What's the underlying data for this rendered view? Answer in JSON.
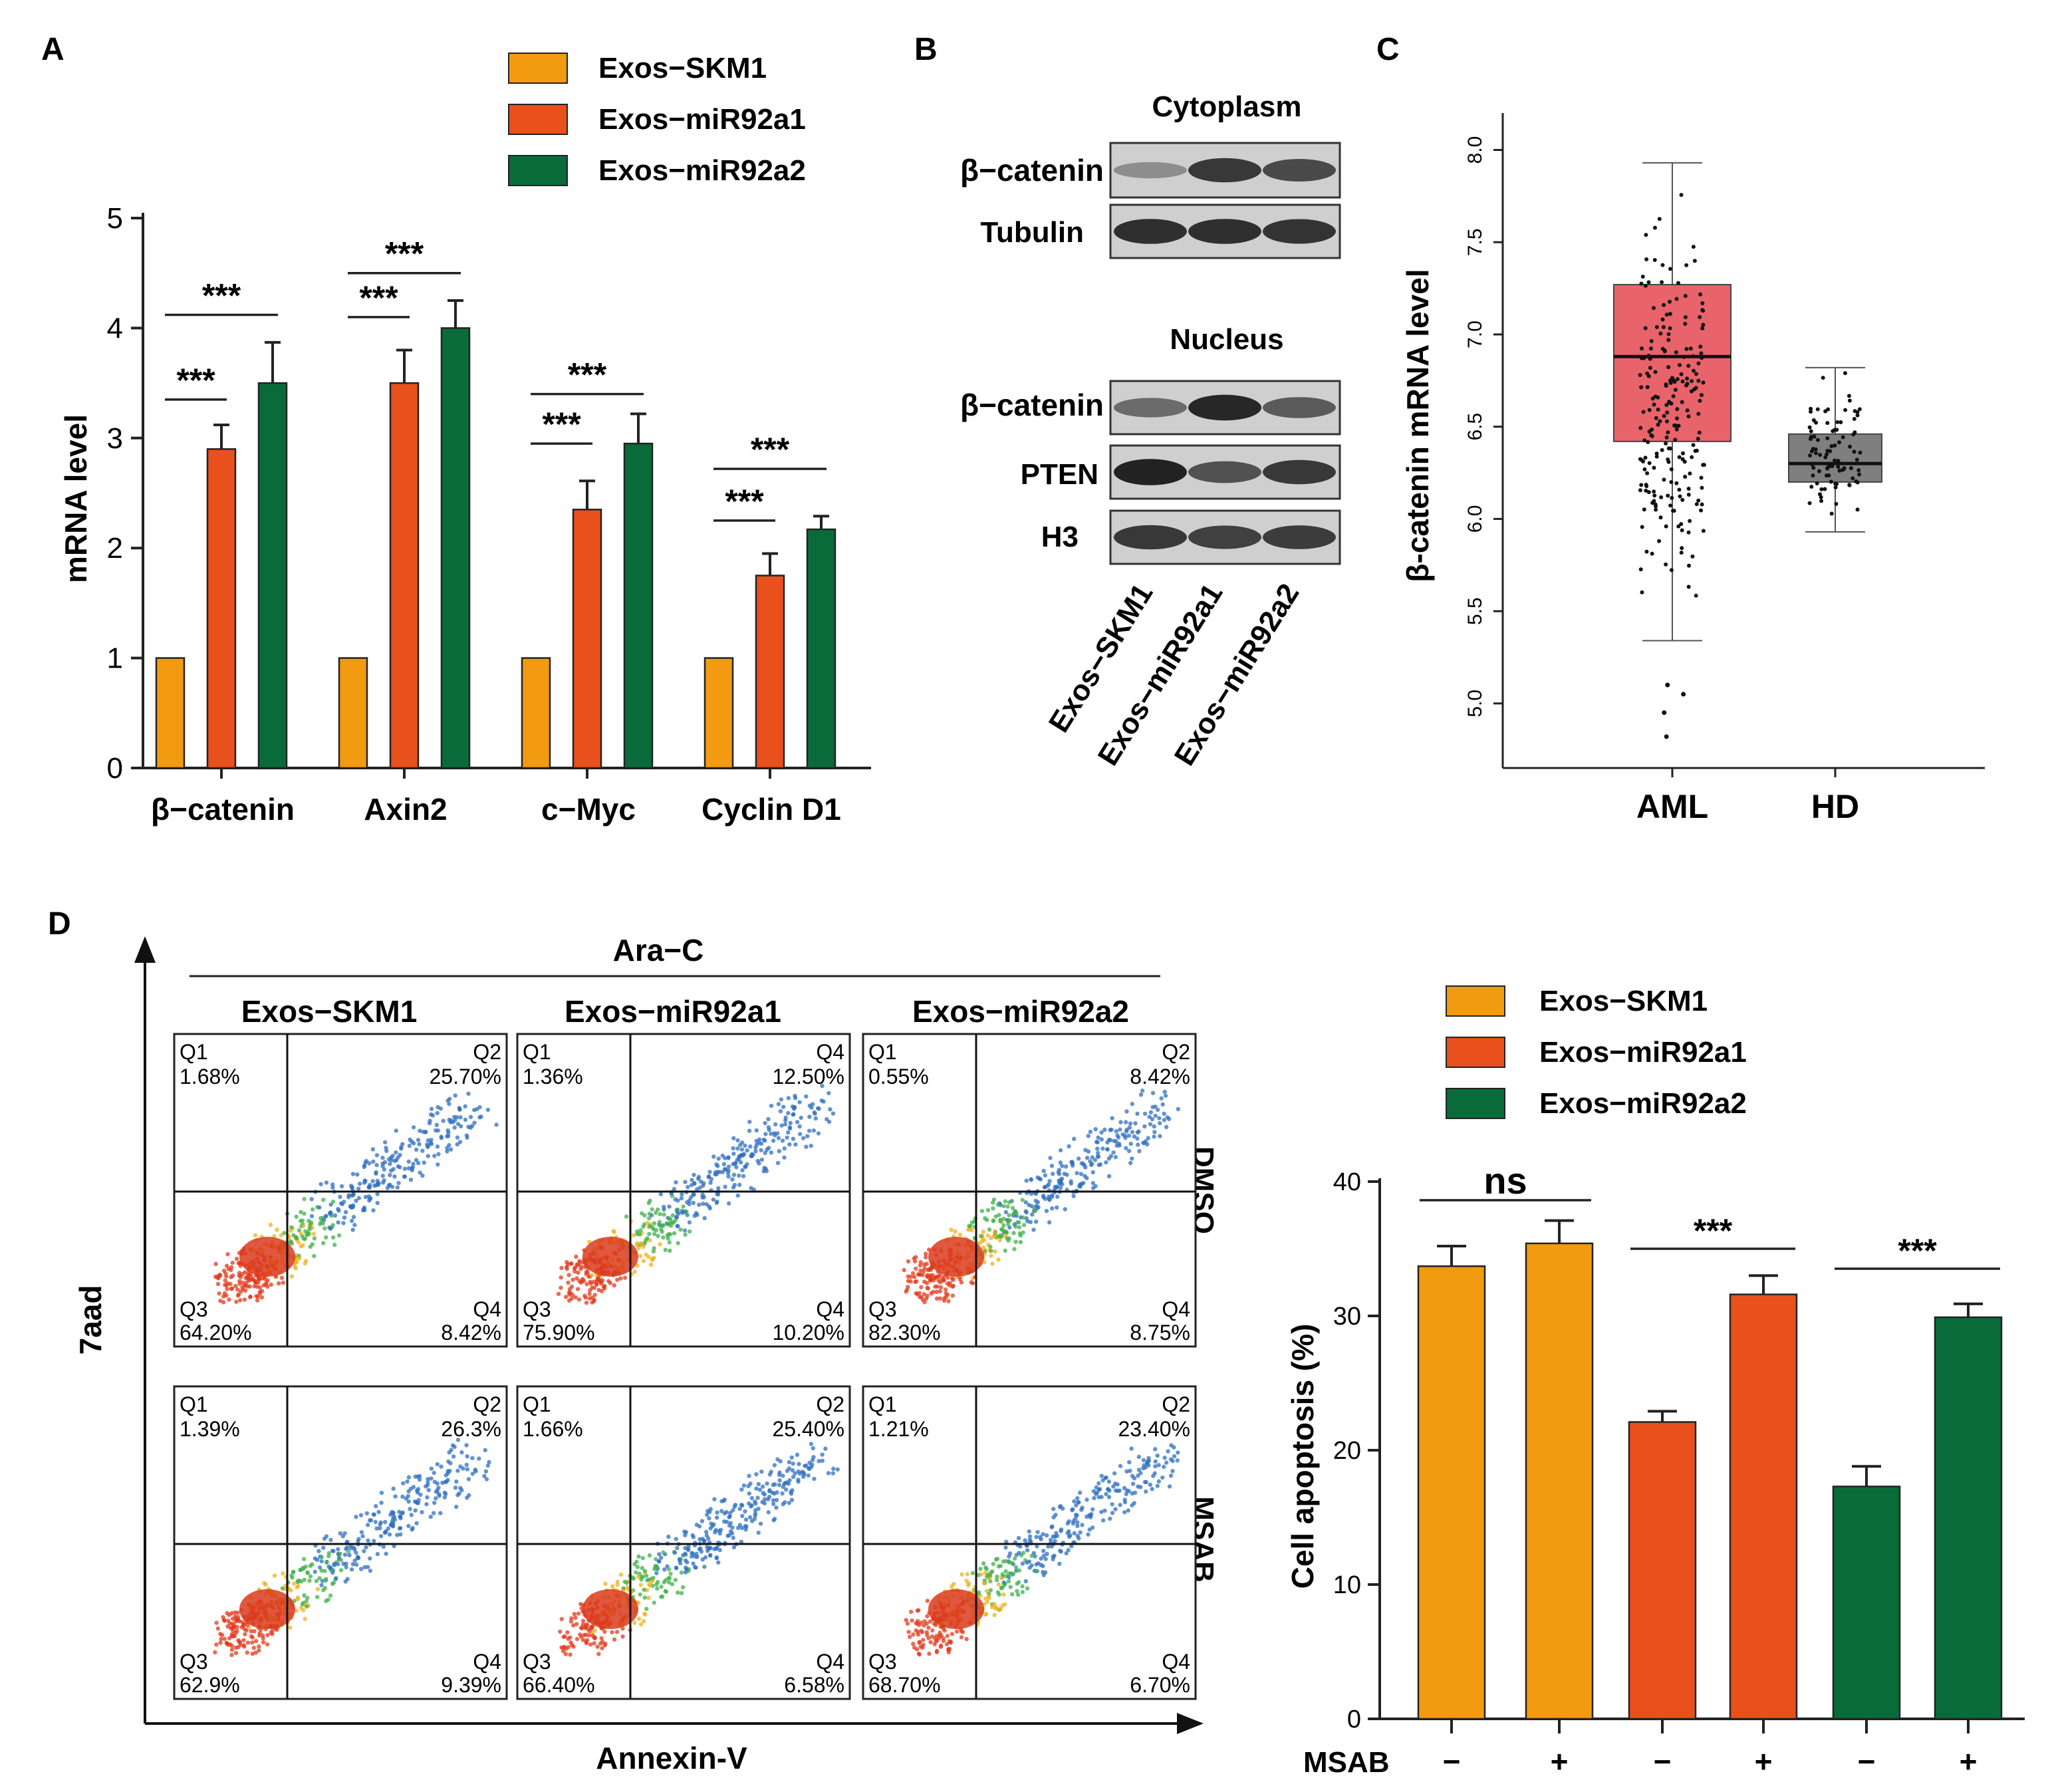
{
  "colors": {
    "skm1": "#F29A10",
    "mir92a1": "#E8501C",
    "mir92a2": "#0A6B3A",
    "aml_box": "#E9636A",
    "hd_box": "#7F7F7F",
    "axis": "#222222"
  },
  "panel_labels": {
    "a": "A",
    "b": "B",
    "c": "C",
    "d": "D"
  },
  "legend": {
    "items": [
      "Exos−SKM1",
      "Exos−miR92a1",
      "Exos−miR92a2"
    ]
  },
  "chart_data": [
    {
      "id": "A",
      "type": "bar",
      "title": "",
      "categories": [
        "β−catenin",
        "Axin2",
        "c−Myc",
        "Cyclin D1"
      ],
      "series": [
        {
          "name": "Exos−SKM1",
          "values": [
            1.0,
            1.0,
            1.0,
            1.0
          ],
          "errors": [
            0,
            0,
            0,
            0
          ]
        },
        {
          "name": "Exos−miR92a1",
          "values": [
            2.9,
            3.5,
            2.35,
            1.75
          ],
          "errors": [
            0.22,
            0.3,
            0.26,
            0.2
          ]
        },
        {
          "name": "Exos−miR92a2",
          "values": [
            3.5,
            4.0,
            2.95,
            2.17
          ],
          "errors": [
            0.37,
            0.25,
            0.27,
            0.12
          ]
        }
      ],
      "ylabel": "mRNA level",
      "xlabel": "",
      "ylim": [
        0,
        5
      ],
      "yticks": [
        "0",
        "1",
        "2",
        "3",
        "4",
        "5"
      ],
      "significance": [
        {
          "group": 0,
          "from": 0,
          "to": 1,
          "label": "***",
          "y": 3.35
        },
        {
          "group": 0,
          "from": 0,
          "to": 2,
          "label": "***",
          "y": 4.12
        },
        {
          "group": 1,
          "from": 0,
          "to": 1,
          "label": "***",
          "y": 4.1
        },
        {
          "group": 1,
          "from": 0,
          "to": 2,
          "label": "***",
          "y": 4.5
        },
        {
          "group": 2,
          "from": 0,
          "to": 1,
          "label": "***",
          "y": 2.95
        },
        {
          "group": 2,
          "from": 0,
          "to": 2,
          "label": "***",
          "y": 3.4
        },
        {
          "group": 3,
          "from": 0,
          "to": 1,
          "label": "***",
          "y": 2.25
        },
        {
          "group": 3,
          "from": 0,
          "to": 2,
          "label": "***",
          "y": 2.72
        }
      ]
    },
    {
      "id": "C",
      "type": "box",
      "categories": [
        "AML",
        "HD"
      ],
      "ylabel": "β-catenin mRNA level",
      "ylim": [
        4.65,
        8.2
      ],
      "yticks": [
        "5.0",
        "5.5",
        "6.0",
        "6.5",
        "7.0",
        "7.5",
        "8.0"
      ],
      "boxes": [
        {
          "name": "AML",
          "whisker_low": 5.34,
          "q1": 6.42,
          "median": 6.88,
          "q3": 7.27,
          "whisker_high": 7.93,
          "outliers": [
            5.1,
            5.05,
            4.95,
            4.82
          ]
        },
        {
          "name": "HD",
          "whisker_low": 5.93,
          "q1": 6.2,
          "median": 6.3,
          "q3": 6.46,
          "whisker_high": 6.82,
          "outliers": []
        }
      ]
    },
    {
      "id": "D",
      "type": "bar",
      "categories": [
        "Exos−SKM1 −",
        "Exos−SKM1 +",
        "Exos−miR92a1 −",
        "Exos−miR92a1 +",
        "Exos−miR92a2 −",
        "Exos−miR92a2 +"
      ],
      "values": [
        33.7,
        35.4,
        22.1,
        31.6,
        17.3,
        29.9
      ],
      "errors": [
        1.5,
        1.7,
        0.8,
        1.4,
        1.5,
        1.0
      ],
      "series_of_bar": [
        0,
        0,
        1,
        1,
        2,
        2
      ],
      "ylabel": "Cell apoptosis (%)",
      "ylim": [
        0,
        40
      ],
      "yticks": [
        "0",
        "10",
        "20",
        "30",
        "40"
      ],
      "xlabel": "MSAB",
      "msab_signs": [
        "−",
        "+",
        "−",
        "+",
        "−",
        "+"
      ],
      "significance": [
        {
          "from": 0,
          "to": 1,
          "label": "ns"
        },
        {
          "from": 2,
          "to": 3,
          "label": "***"
        },
        {
          "from": 4,
          "to": 5,
          "label": "***"
        }
      ]
    }
  ],
  "panel_b": {
    "cyto_title": "Cytoplasm",
    "nucleus_title": "Nucleus",
    "cyto_rows": [
      "β−catenin",
      "Tubulin"
    ],
    "nucleus_rows": [
      "β−catenin",
      "PTEN",
      "H3"
    ],
    "lanes": [
      "Exos−SKM1",
      "Exos−miR92a1",
      "Exos−miR92a2"
    ]
  },
  "panel_d_flow": {
    "treatment": "Ara−C",
    "columns": [
      "Exos−SKM1",
      "Exos−miR92a1",
      "Exos−miR92a2"
    ],
    "rows": [
      "DMSO",
      "MSAB"
    ],
    "y_axis": "7aad",
    "x_axis": "Annexin-V",
    "plots": [
      {
        "q1": "Q1",
        "q1v": "1.68%",
        "q2": "Q2",
        "q2v": "25.70%",
        "q3": "Q3",
        "q3v": "64.20%",
        "q4": "Q4",
        "q4v": "8.42%"
      },
      {
        "q1": "Q1",
        "q1v": "1.36%",
        "q2": "Q4",
        "q2v": "12.50%",
        "q3": "Q3",
        "q3v": "75.90%",
        "q4": "Q4",
        "q4v": "10.20%"
      },
      {
        "q1": "Q1",
        "q1v": "0.55%",
        "q2": "Q2",
        "q2v": "8.42%",
        "q3": "Q3",
        "q3v": "82.30%",
        "q4": "Q4",
        "q4v": "8.75%"
      },
      {
        "q1": "Q1",
        "q1v": "1.39%",
        "q2": "Q2",
        "q2v": "26.3%",
        "q3": "Q3",
        "q3v": "62.9%",
        "q4": "Q4",
        "q4v": "9.39%"
      },
      {
        "q1": "Q1",
        "q1v": "1.66%",
        "q2": "Q2",
        "q2v": "25.40%",
        "q3": "Q3",
        "q3v": "66.40%",
        "q4": "Q4",
        "q4v": "6.58%"
      },
      {
        "q1": "Q1",
        "q1v": "1.21%",
        "q2": "Q2",
        "q2v": "23.40%",
        "q3": "Q3",
        "q3v": "68.70%",
        "q4": "Q4",
        "q4v": "6.70%"
      }
    ]
  }
}
